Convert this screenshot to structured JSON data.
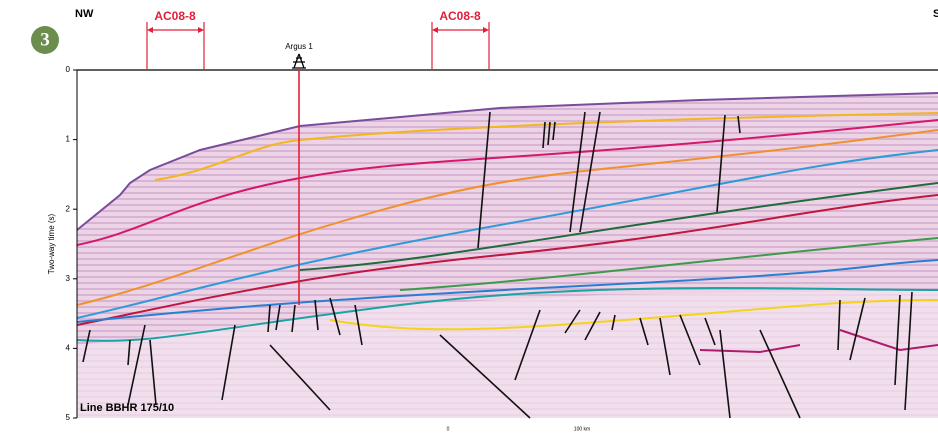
{
  "badge": "3",
  "direction": {
    "left": "NW",
    "right": "S"
  },
  "surveys": [
    "AC08-8",
    "AC08-8"
  ],
  "well": "Argus 1",
  "axis": {
    "label": "Two-way time (s)",
    "range": [
      0,
      5
    ],
    "ticks": [
      0,
      1,
      2,
      3,
      4,
      5
    ]
  },
  "line_name": "Line BBHR 175/10",
  "scale": {
    "start": "0",
    "end": "100 km"
  }
}
